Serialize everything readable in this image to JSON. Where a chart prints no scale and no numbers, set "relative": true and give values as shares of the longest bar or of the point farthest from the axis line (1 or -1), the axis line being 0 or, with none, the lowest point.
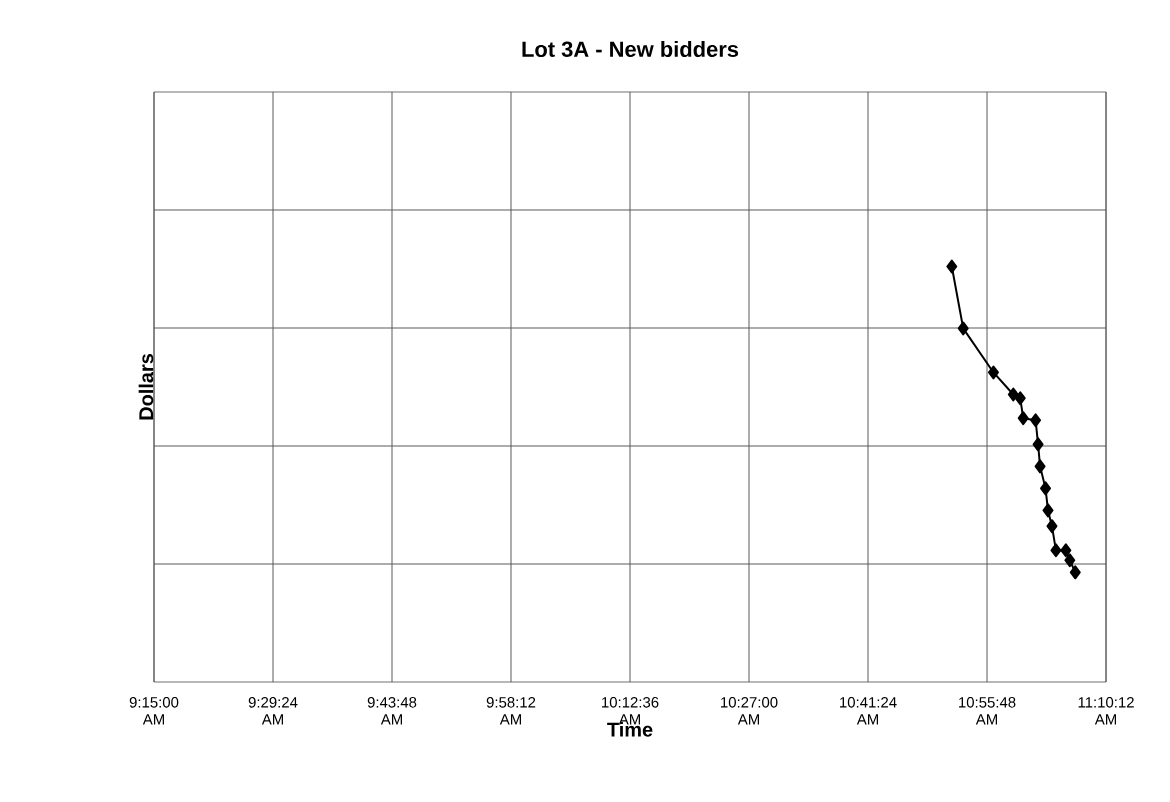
{
  "chart_data": {
    "type": "line",
    "title": "Lot 3A - New bidders",
    "xlabel": "Time",
    "ylabel": "Dollars",
    "relative": true,
    "grid": true,
    "marker": "diamond",
    "line_style": "solid",
    "xlim": [
      9.25,
      11.17
    ],
    "xticks": [
      {
        "value": 9.25,
        "label": "9:15:00 AM"
      },
      {
        "value": 9.49,
        "label": "9:29:24 AM"
      },
      {
        "value": 9.73,
        "label": "9:43:48 AM"
      },
      {
        "value": 9.97,
        "label": "9:58:12 AM"
      },
      {
        "value": 10.21,
        "label": "10:12:36 AM"
      },
      {
        "value": 10.45,
        "label": "10:27:00 AM"
      },
      {
        "value": 10.69,
        "label": "10:41:24 AM"
      },
      {
        "value": 10.93,
        "label": "10:55:48 AM"
      },
      {
        "value": 11.17,
        "label": "11:10:12 AM"
      }
    ],
    "series": [
      {
        "color": "#000000",
        "x": [
          10.859,
          10.882,
          10.943,
          10.983,
          10.997,
          11.003,
          11.028,
          11.033,
          11.037,
          11.048,
          11.053,
          11.061,
          11.069,
          11.089,
          11.097,
          11.108
        ],
        "values": [
          1,
          0.851,
          0.745,
          0.692,
          0.683,
          0.635,
          0.63,
          0.572,
          0.519,
          0.466,
          0.413,
          0.375,
          0.317,
          0.317,
          0.293,
          0.264
        ]
      }
    ]
  }
}
